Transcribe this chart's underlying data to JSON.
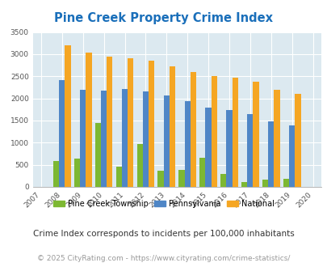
{
  "title": "Pine Creek Property Crime Index",
  "years": [
    2008,
    2009,
    2010,
    2011,
    2012,
    2013,
    2014,
    2015,
    2016,
    2017,
    2018,
    2019
  ],
  "x_ticks": [
    2007,
    2008,
    2009,
    2010,
    2011,
    2012,
    2013,
    2014,
    2015,
    2016,
    2017,
    2018,
    2019,
    2020
  ],
  "pine_creek": [
    580,
    640,
    1450,
    450,
    970,
    360,
    380,
    660,
    290,
    110,
    160,
    190
  ],
  "pennsylvania": [
    2420,
    2200,
    2180,
    2220,
    2160,
    2070,
    1940,
    1800,
    1730,
    1640,
    1490,
    1390
  ],
  "national": [
    3200,
    3040,
    2950,
    2900,
    2860,
    2720,
    2590,
    2500,
    2470,
    2380,
    2200,
    2110
  ],
  "color_pine": "#7db832",
  "color_pa": "#4f86c6",
  "color_nat": "#f5a623",
  "ylim": [
    0,
    3500
  ],
  "yticks": [
    0,
    500,
    1000,
    1500,
    2000,
    2500,
    3000,
    3500
  ],
  "bg_color": "#dce9f0",
  "title_color": "#1a6fba",
  "legend_label_pine": "Pine Creek Township",
  "legend_label_pa": "Pennsylvania",
  "legend_label_nat": "National",
  "footnote1": "Crime Index corresponds to incidents per 100,000 inhabitants",
  "footnote2": "© 2025 CityRating.com - https://www.cityrating.com/crime-statistics/",
  "bar_width": 0.28
}
